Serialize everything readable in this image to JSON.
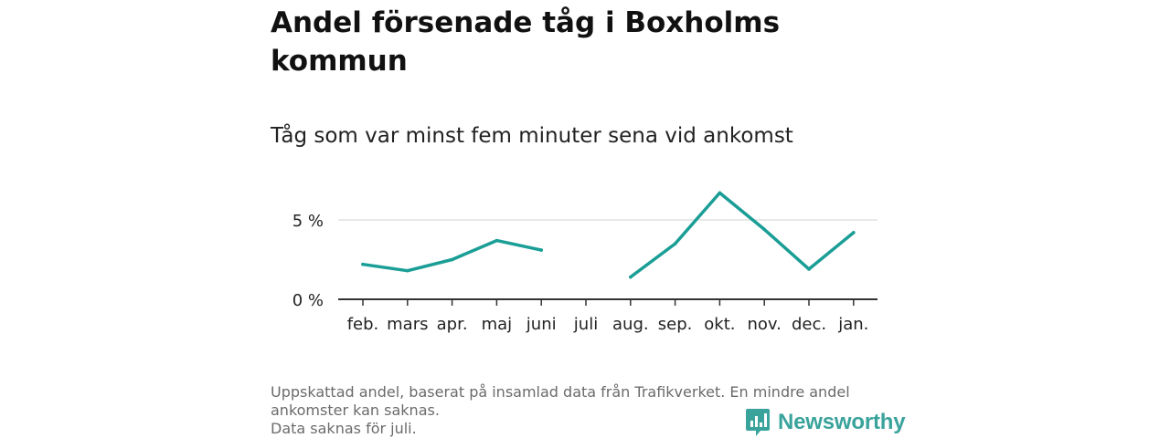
{
  "title": "Andel försenade tåg i Boxholms kommun",
  "subtitle": "Tåg som var minst fem minuter sena vid ankomst",
  "footnote": {
    "line1": "Uppskattad andel, baserat på insamlad data från Trafikverket. En mindre andel ankomster kan saknas.",
    "line2": "Data saknas för juli."
  },
  "logo": {
    "text": "Newsworthy",
    "icon": "bar-chart-bubble-icon",
    "color": "#3aa39b"
  },
  "chart_data": {
    "type": "line",
    "title": "Andel försenade tåg i Boxholms kommun",
    "subtitle": "Tåg som var minst fem minuter sena vid ankomst",
    "xlabel": "",
    "ylabel": "",
    "categories": [
      "feb.",
      "mars",
      "apr.",
      "maj",
      "juni",
      "juli",
      "aug.",
      "sep.",
      "okt.",
      "nov.",
      "dec.",
      "jan."
    ],
    "series": [
      {
        "values": [
          2.2,
          1.8,
          2.5,
          3.7,
          3.1,
          null,
          1.4,
          3.5,
          6.7,
          4.4,
          1.9,
          4.2
        ],
        "color": "#1a9e96"
      }
    ],
    "ylim": [
      0,
      7
    ],
    "yticks": [
      0,
      5
    ],
    "ytick_labels": [
      "0 %",
      "5 %"
    ],
    "grid": true
  }
}
